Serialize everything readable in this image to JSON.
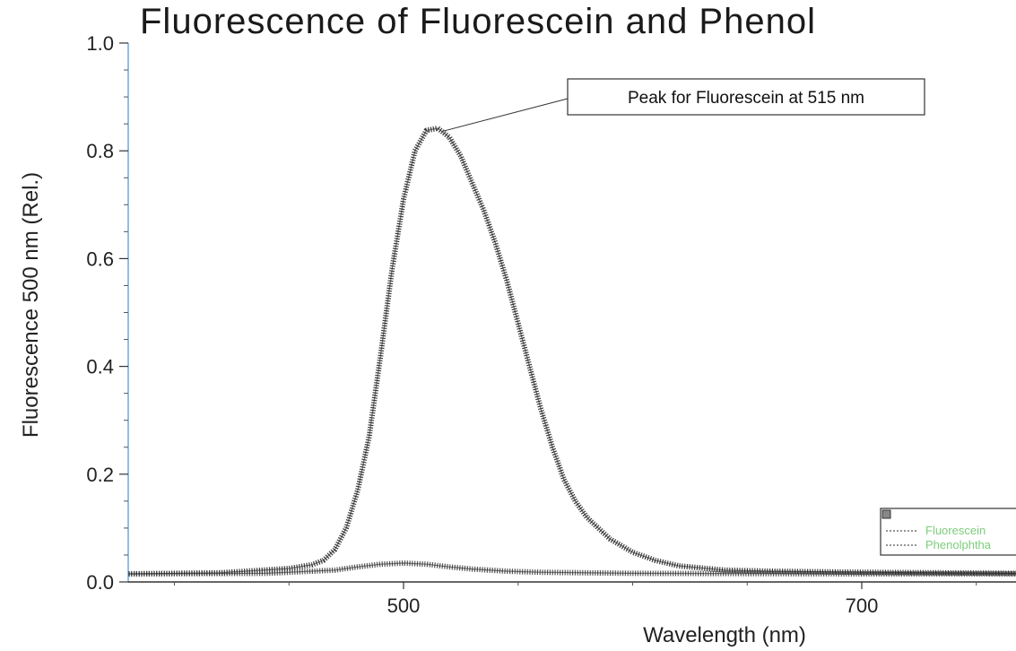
{
  "chart_data": {
    "type": "line",
    "title": "Fluorescence of Fluorescein and Phenol",
    "xlabel": "Wavelength (nm)",
    "ylabel": "Fluorescence 500 nm (Rel.)",
    "xlim": [
      380,
      1000
    ],
    "ylim": [
      0,
      1.0
    ],
    "x_ticks": [
      500,
      700
    ],
    "y_ticks": [
      0.0,
      0.2,
      0.4,
      0.6,
      0.8,
      1.0
    ],
    "y_tick_labels": [
      "0.0",
      "0.2",
      "0.4",
      "0.6",
      "0.8",
      "1.0"
    ],
    "grid": false,
    "legend_position": "bottom-right",
    "annotation": {
      "text": "Peak for Fluorescein at 515 nm",
      "x": 515,
      "y": 0.84
    },
    "series": [
      {
        "name": "Fluorescein",
        "color": "#3a3a3a",
        "x": [
          380,
          420,
          450,
          460,
          465,
          470,
          475,
          480,
          485,
          490,
          495,
          500,
          505,
          510,
          515,
          520,
          525,
          530,
          535,
          540,
          545,
          550,
          555,
          560,
          565,
          570,
          575,
          580,
          590,
          600,
          610,
          620,
          640,
          660,
          700,
          800,
          900,
          1000
        ],
        "values": [
          0.015,
          0.017,
          0.025,
          0.032,
          0.04,
          0.06,
          0.1,
          0.17,
          0.27,
          0.42,
          0.58,
          0.71,
          0.8,
          0.838,
          0.842,
          0.825,
          0.79,
          0.74,
          0.69,
          0.63,
          0.56,
          0.48,
          0.4,
          0.32,
          0.25,
          0.19,
          0.15,
          0.12,
          0.08,
          0.055,
          0.04,
          0.03,
          0.022,
          0.02,
          0.018,
          0.016,
          0.016,
          0.016
        ]
      },
      {
        "name": "Phenolphtha",
        "color": "#555555",
        "x": [
          380,
          440,
          470,
          480,
          490,
          500,
          510,
          520,
          530,
          545,
          560,
          600,
          700,
          800,
          1000
        ],
        "values": [
          0.015,
          0.016,
          0.022,
          0.028,
          0.033,
          0.035,
          0.033,
          0.028,
          0.024,
          0.02,
          0.018,
          0.016,
          0.015,
          0.015,
          0.015
        ]
      }
    ]
  },
  "legend_icon": "legend-box-icon"
}
